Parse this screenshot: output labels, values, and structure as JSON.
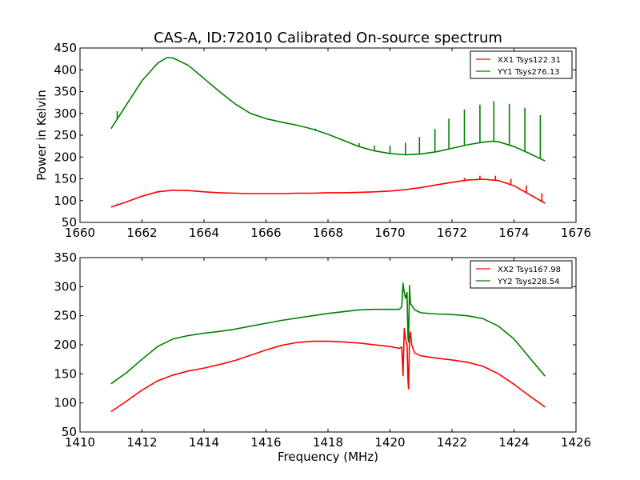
{
  "title": "CAS-A, ID:72010 Calibrated On-source spectrum",
  "colors": {
    "red": "#ff0000",
    "green": "#008000"
  },
  "chart_data": [
    {
      "type": "line",
      "title": "CAS-A, ID:72010 Calibrated On-source spectrum",
      "xlabel": "",
      "ylabel": "Power in Kelvin",
      "xlim": [
        1660,
        1676
      ],
      "ylim": [
        50,
        450
      ],
      "xticks": [
        "1660",
        "1662",
        "1664",
        "1666",
        "1668",
        "1670",
        "1672",
        "1674",
        "1676"
      ],
      "yticks": [
        "50",
        "100",
        "150",
        "200",
        "250",
        "300",
        "350",
        "400",
        "450"
      ],
      "grid": false,
      "legend": "top-right",
      "series": [
        {
          "name": "XX1 Tsys122.31",
          "color": "#ff0000",
          "x": [
            1661,
            1661.5,
            1662,
            1662.5,
            1663,
            1663.5,
            1664,
            1664.5,
            1665,
            1665.5,
            1666,
            1666.5,
            1667,
            1667.5,
            1668,
            1668.5,
            1669,
            1669.5,
            1670,
            1670.5,
            1671,
            1671.5,
            1672,
            1672.5,
            1673,
            1673.5,
            1674,
            1674.5,
            1675
          ],
          "y": [
            85,
            97,
            110,
            120,
            124,
            123,
            120,
            118,
            117,
            116,
            116,
            116,
            117,
            117,
            118,
            118,
            119,
            120,
            122,
            125,
            130,
            136,
            142,
            147,
            149,
            146,
            134,
            114,
            94
          ],
          "spikes": {
            "x": [
              1661.2,
              1672.4,
              1672.9,
              1673.4,
              1673.9,
              1674.4,
              1674.9
            ],
            "y": [
              93,
              152,
              157,
              157,
              150,
              135,
              117
            ]
          }
        },
        {
          "name": "YY1 Tsys276.13",
          "color": "#008000",
          "x": [
            1661,
            1661.5,
            1662,
            1662.5,
            1662.8,
            1663,
            1663.5,
            1664,
            1664.5,
            1665,
            1665.5,
            1666,
            1666.5,
            1667,
            1667.5,
            1668,
            1668.5,
            1669,
            1669.5,
            1670,
            1670.5,
            1671,
            1671.5,
            1672,
            1672.5,
            1673,
            1673.3,
            1673.5,
            1674,
            1674.5,
            1675
          ],
          "y": [
            265,
            320,
            375,
            415,
            428,
            427,
            410,
            380,
            350,
            322,
            300,
            288,
            280,
            273,
            264,
            252,
            238,
            224,
            214,
            208,
            205,
            207,
            212,
            220,
            228,
            234,
            236,
            235,
            224,
            208,
            191
          ],
          "spikes": {
            "x": [
              1661.2,
              1667.6,
              1668.5,
              1669.0,
              1669.5,
              1670.0,
              1670.5,
              1670.95,
              1671.45,
              1671.9,
              1672.4,
              1672.9,
              1673.35,
              1673.85,
              1674.35,
              1674.85
            ],
            "y": [
              305,
              265,
              240,
              232,
              226,
              226,
              233,
              246,
              264,
              288,
              309,
              320,
              328,
              322,
              313,
              296
            ]
          }
        }
      ]
    },
    {
      "type": "line",
      "title": "",
      "xlabel": "Frequency (MHz)",
      "ylabel": "",
      "xlim": [
        1410,
        1426
      ],
      "ylim": [
        50,
        350
      ],
      "xticks": [
        "1410",
        "1412",
        "1414",
        "1416",
        "1418",
        "1420",
        "1422",
        "1424",
        "1426"
      ],
      "yticks": [
        "50",
        "100",
        "150",
        "200",
        "250",
        "300",
        "350"
      ],
      "grid": false,
      "legend": "top-right",
      "series": [
        {
          "name": "XX2 Tsys167.98",
          "color": "#ff0000",
          "x": [
            1411,
            1411.5,
            1412,
            1412.5,
            1413,
            1413.5,
            1414,
            1414.5,
            1415,
            1415.5,
            1416,
            1416.5,
            1417,
            1417.5,
            1418,
            1418.5,
            1419,
            1419.5,
            1420,
            1420.3,
            1420.38,
            1420.42,
            1420.46,
            1420.5,
            1420.55,
            1420.58,
            1420.6,
            1420.63,
            1420.66,
            1420.7,
            1420.8,
            1421,
            1421.5,
            1422,
            1422.5,
            1423,
            1423.5,
            1424,
            1424.5,
            1425
          ],
          "y": [
            85,
            103,
            122,
            138,
            148,
            155,
            160,
            166,
            173,
            182,
            191,
            199,
            204,
            206,
            206,
            205,
            203,
            200,
            197,
            194,
            196,
            147,
            228,
            210,
            200,
            138,
            124,
            210,
            222,
            200,
            186,
            181,
            177,
            174,
            170,
            163,
            150,
            132,
            112,
            93
          ]
        },
        {
          "name": "YY2 Tsys228.54",
          "color": "#008000",
          "x": [
            1411,
            1411.5,
            1412,
            1412.5,
            1413,
            1413.5,
            1414,
            1414.5,
            1415,
            1415.5,
            1416,
            1416.5,
            1417,
            1417.5,
            1418,
            1418.5,
            1419,
            1419.5,
            1420,
            1420.3,
            1420.38,
            1420.42,
            1420.46,
            1420.5,
            1420.55,
            1420.58,
            1420.6,
            1420.63,
            1420.66,
            1420.7,
            1420.8,
            1421,
            1421.5,
            1422,
            1422.5,
            1423,
            1423.5,
            1424,
            1424.5,
            1425
          ],
          "y": [
            133,
            152,
            175,
            197,
            210,
            216,
            220,
            223,
            227,
            232,
            237,
            242,
            246,
            250,
            254,
            257,
            260,
            261,
            261,
            261,
            265,
            306,
            290,
            280,
            290,
            212,
            205,
            302,
            270,
            268,
            260,
            255,
            253,
            252,
            250,
            245,
            232,
            210,
            178,
            146
          ]
        }
      ]
    }
  ]
}
